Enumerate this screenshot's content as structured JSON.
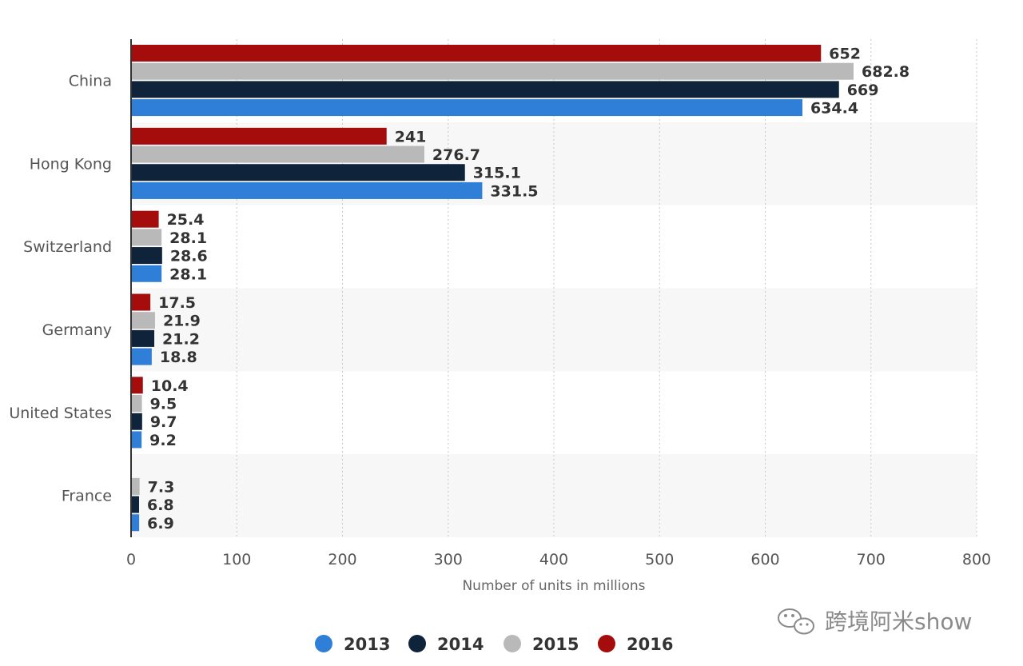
{
  "chart_data": {
    "type": "bar",
    "orientation": "horizontal",
    "categories": [
      "China",
      "Hong Kong",
      "Switzerland",
      "Germany",
      "United States",
      "France"
    ],
    "series": [
      {
        "name": "2016",
        "color": "#a50d0d",
        "values": [
          652,
          241,
          25.4,
          17.5,
          10.4,
          null
        ],
        "labels": [
          "652",
          "241",
          "25.4",
          "17.5",
          "10.4",
          ""
        ]
      },
      {
        "name": "2015",
        "color": "#b9b9b9",
        "values": [
          682.8,
          276.7,
          28.1,
          21.9,
          9.5,
          7.3
        ],
        "labels": [
          "682.8",
          "276.7",
          "28.1",
          "21.9",
          "9.5",
          "7.3"
        ]
      },
      {
        "name": "2014",
        "color": "#0f233a",
        "values": [
          669,
          315.1,
          28.6,
          21.2,
          9.7,
          6.8
        ],
        "labels": [
          "669",
          "315.1",
          "28.6",
          "21.2",
          "9.7",
          "6.8"
        ]
      },
      {
        "name": "2013",
        "color": "#2f7ed8",
        "values": [
          634.4,
          331.5,
          28.1,
          18.8,
          9.2,
          6.9
        ],
        "labels": [
          "634.4",
          "331.5",
          "28.1",
          "18.8",
          "9.2",
          "6.9"
        ]
      }
    ],
    "xlabel": "Number of units in millions",
    "ylabel": "",
    "xlim": [
      0,
      800
    ],
    "xticks": [
      0,
      100,
      200,
      300,
      400,
      500,
      600,
      700,
      800
    ],
    "xtick_labels": [
      "0",
      "100",
      "200",
      "300",
      "400",
      "500",
      "600",
      "700",
      "800"
    ],
    "grid": "vertical-dotted",
    "legend_position": "bottom-center",
    "legend": [
      {
        "label": "2013",
        "color": "#2f7ed8"
      },
      {
        "label": "2014",
        "color": "#0f233a"
      },
      {
        "label": "2015",
        "color": "#b9b9b9"
      },
      {
        "label": "2016",
        "color": "#a50d0d"
      }
    ]
  },
  "watermark": {
    "text": "跨境阿米show",
    "icon": "wechat-icon"
  }
}
